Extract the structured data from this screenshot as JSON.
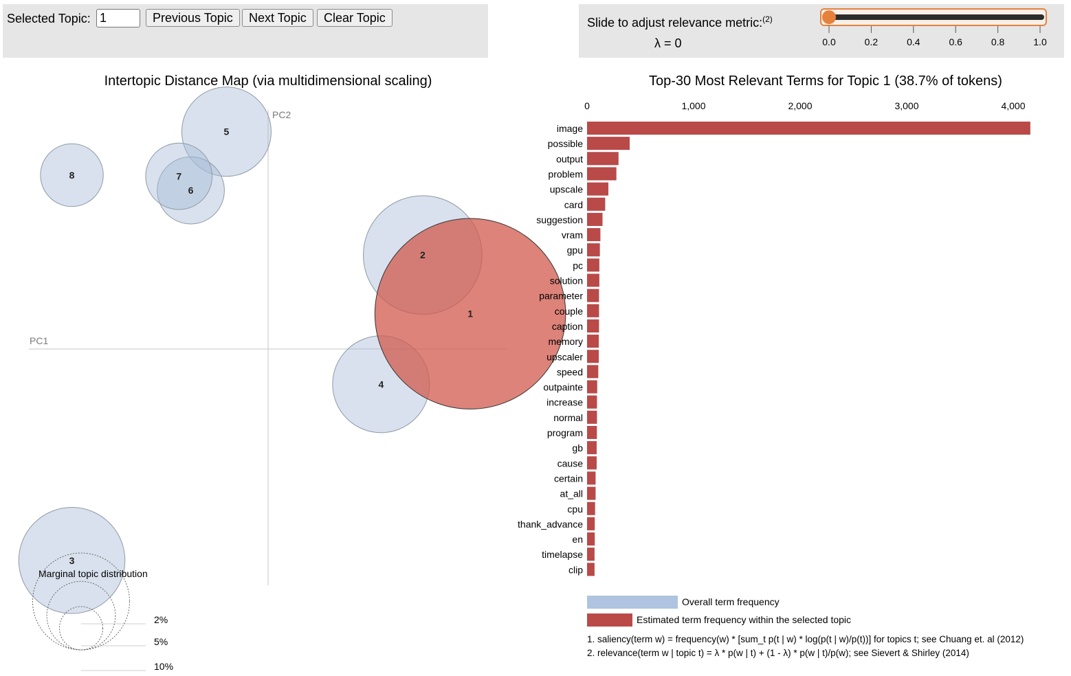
{
  "controls": {
    "selected_topic_label": "Selected Topic:",
    "selected_topic_value": "1",
    "previous_label": "Previous Topic",
    "next_label": "Next Topic",
    "clear_label": "Clear Topic",
    "slider_label": "Slide to adjust relevance metric:",
    "slider_footnote": "(2)",
    "lambda_text": "λ = 0",
    "lambda_value": 0,
    "slider_ticks": [
      "0.0",
      "0.2",
      "0.4",
      "0.6",
      "0.8",
      "1.0"
    ]
  },
  "colors": {
    "accent": "#e6813c",
    "topic_default": "#a9bcd8",
    "topic_selected": "#d25a4e",
    "bar_relevant": "#b94a48",
    "bar_overall": "#aec4e0",
    "panel_bg": "#e6e6e6"
  },
  "chart_data": [
    {
      "type": "scatter",
      "title": "Intertopic Distance Map (via multidimensional scaling)",
      "xlabel": "PC1",
      "ylabel": "PC2",
      "selected_topic": "1",
      "topics": [
        {
          "id": "1",
          "x": 0.17,
          "y": 0.03,
          "size_pct": 38.7
        },
        {
          "id": "2",
          "x": 0.13,
          "y": 0.08,
          "size_pct": 15.0
        },
        {
          "id": "3",
          "x": -0.165,
          "y": -0.18,
          "size_pct": 12.0
        },
        {
          "id": "4",
          "x": 0.095,
          "y": -0.03,
          "size_pct": 10.0
        },
        {
          "id": "5",
          "x": -0.035,
          "y": 0.185,
          "size_pct": 8.5
        },
        {
          "id": "6",
          "x": -0.065,
          "y": 0.135,
          "size_pct": 4.8
        },
        {
          "id": "7",
          "x": -0.075,
          "y": 0.147,
          "size_pct": 4.7
        },
        {
          "id": "8",
          "x": -0.165,
          "y": 0.148,
          "size_pct": 4.2
        }
      ],
      "legend": {
        "title": "Marginal topic distribution",
        "items": [
          {
            "label": "2%",
            "pct": 2
          },
          {
            "label": "5%",
            "pct": 5
          },
          {
            "label": "10%",
            "pct": 10
          }
        ]
      }
    },
    {
      "type": "bar",
      "orientation": "horizontal",
      "title": "Top-30 Most Relevant Terms for Topic 1 (38.7% of tokens)",
      "xlim": [
        0,
        4000
      ],
      "xticks": [
        "0",
        "1,000",
        "2,000",
        "3,000",
        "4,000"
      ],
      "xtick_values": [
        0,
        1000,
        2000,
        3000,
        4000
      ],
      "categories": [
        "image",
        "possible",
        "output",
        "problem",
        "upscale",
        "card",
        "suggestion",
        "vram",
        "gpu",
        "pc",
        "solution",
        "parameter",
        "couple",
        "caption",
        "memory",
        "upscaler",
        "speed",
        "outpainte",
        "increase",
        "normal",
        "program",
        "gb",
        "cause",
        "certain",
        "at_all",
        "cpu",
        "thank_advance",
        "en",
        "timelapse",
        "clip"
      ],
      "series": [
        {
          "name": "Overall term frequency",
          "values": [
            4160,
            400,
            295,
            275,
            200,
            170,
            145,
            125,
            120,
            115,
            115,
            112,
            112,
            112,
            110,
            110,
            105,
            95,
            93,
            93,
            92,
            90,
            90,
            80,
            80,
            75,
            72,
            72,
            70,
            70
          ]
        },
        {
          "name": "Estimated term frequency within the selected topic",
          "values": [
            4160,
            400,
            295,
            275,
            200,
            170,
            145,
            125,
            120,
            115,
            115,
            112,
            112,
            112,
            110,
            110,
            105,
            95,
            93,
            93,
            92,
            90,
            90,
            80,
            80,
            75,
            72,
            72,
            70,
            70
          ]
        }
      ],
      "legend": {
        "overall": "Overall term frequency",
        "estimated": "Estimated term frequency within the selected topic"
      },
      "footnotes": [
        "1. saliency(term w) = frequency(w) * [sum_t p(t | w) * log(p(t | w)/p(t))] for topics t; see Chuang et. al (2012)",
        "2. relevance(term w | topic t) = λ * p(w | t) + (1 - λ) * p(w | t)/p(w); see Sievert & Shirley (2014)"
      ]
    }
  ]
}
